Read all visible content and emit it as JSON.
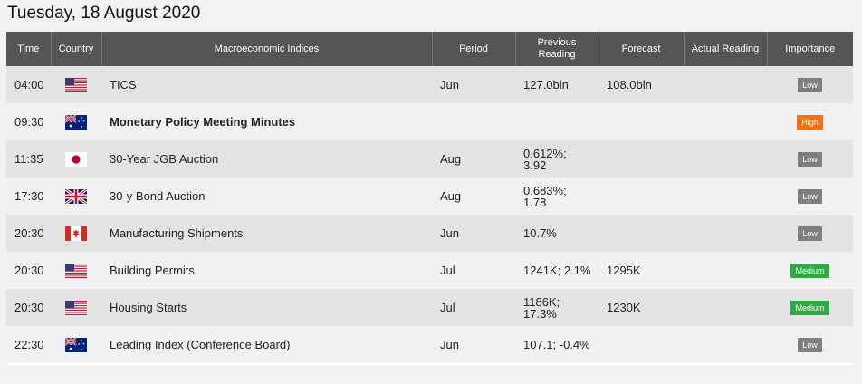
{
  "page": {
    "title": "Tuesday, 18 August 2020"
  },
  "columns": {
    "time": "Time",
    "country": "Country",
    "indices": "Macroeconomic Indices",
    "period": "Period",
    "previous": "Previous\nReading",
    "forecast": "Forecast",
    "actual": "Actual Reading",
    "importance": "Importance"
  },
  "importance_colors": {
    "Low": "#7f7f7f",
    "High": "#f26f13",
    "Medium": "#2eaa44"
  },
  "rows": [
    {
      "time": "04:00",
      "flag": "us-flag-icon",
      "indicator": "TICS",
      "bold": false,
      "period": "Jun",
      "previous": "127.0bln",
      "forecast": "108.0bln",
      "actual": "",
      "importance": "Low"
    },
    {
      "time": "09:30",
      "flag": "australia-flag-icon",
      "indicator": "Monetary Policy Meeting Minutes",
      "bold": true,
      "period": "",
      "previous": "",
      "forecast": "",
      "actual": "",
      "importance": "High"
    },
    {
      "time": "11:35",
      "flag": "japan-flag-icon",
      "indicator": "30-Year JGB Auction",
      "bold": false,
      "period": "Aug",
      "previous": "0.612%;\n3.92",
      "forecast": "",
      "actual": "",
      "importance": "Low"
    },
    {
      "time": "17:30",
      "flag": "uk-flag-icon",
      "indicator": "30-y Bond Auction",
      "bold": false,
      "period": "Aug",
      "previous": "0.683%;\n1.78",
      "forecast": "",
      "actual": "",
      "importance": "Low"
    },
    {
      "time": "20:30",
      "flag": "canada-flag-icon",
      "indicator": "Manufacturing Shipments",
      "bold": false,
      "period": "Jun",
      "previous": "10.7%",
      "forecast": "",
      "actual": "",
      "importance": "Low"
    },
    {
      "time": "20:30",
      "flag": "us-flag-icon",
      "indicator": "Building Permits",
      "bold": false,
      "period": "Jul",
      "previous": "1241K; 2.1%",
      "forecast": "1295K",
      "actual": "",
      "importance": "Medium"
    },
    {
      "time": "20:30",
      "flag": "us-flag-icon",
      "indicator": "Housing Starts",
      "bold": false,
      "period": "Jul",
      "previous": "1186K;\n17.3%",
      "forecast": "1230K",
      "actual": "",
      "importance": "Medium"
    },
    {
      "time": "22:30",
      "flag": "australia-flag-icon",
      "indicator": "Leading Index (Conference Board)",
      "bold": false,
      "period": "Jun",
      "previous": "107.1; -0.4%",
      "forecast": "",
      "actual": "",
      "importance": "Low"
    }
  ]
}
